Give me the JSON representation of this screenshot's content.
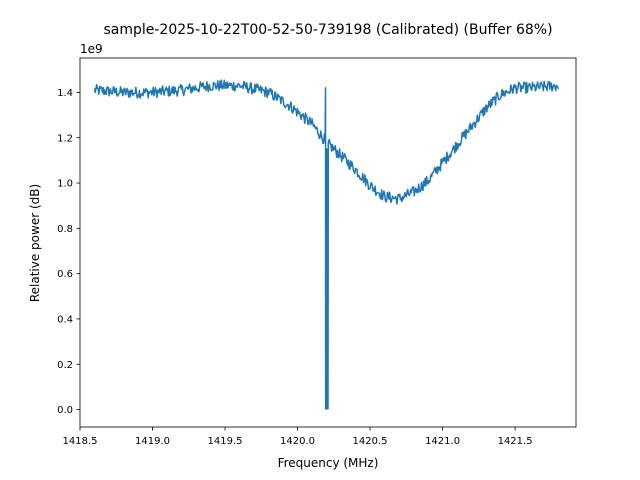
{
  "chart_data": {
    "type": "line",
    "title": "sample-2025-10-22T00-52-50-739198 (Calibrated) (Buffer 68%)",
    "xlabel": "Frequency (MHz)",
    "ylabel": "Relative power (dB)",
    "y_scale_label": "1e9",
    "xlim": [
      1418.5,
      1421.92
    ],
    "ylim": [
      -0.077,
      1.552
    ],
    "x_ticks": [
      1418.5,
      1419.0,
      1419.5,
      1420.0,
      1420.5,
      1421.0,
      1421.5
    ],
    "x_tick_labels": [
      "1418.5",
      "1419.0",
      "1419.5",
      "1420.0",
      "1420.5",
      "1421.0",
      "1421.5"
    ],
    "y_ticks": [
      0.0,
      0.2,
      0.4,
      0.6,
      0.8,
      1.0,
      1.2,
      1.4
    ],
    "y_tick_labels": [
      "0.0",
      "0.2",
      "0.4",
      "0.6",
      "0.8",
      "1.0",
      "1.2",
      "1.4"
    ],
    "grid": false,
    "line_color": "#1f77b4",
    "series": [
      {
        "x_range": [
          1418.6,
          1421.8
        ],
        "baseline_points": [
          [
            1418.6,
            1.41
          ],
          [
            1418.8,
            1.4
          ],
          [
            1419.0,
            1.4
          ],
          [
            1419.2,
            1.41
          ],
          [
            1419.4,
            1.43
          ],
          [
            1419.6,
            1.43
          ],
          [
            1419.8,
            1.4
          ],
          [
            1419.95,
            1.34
          ],
          [
            1420.1,
            1.26
          ],
          [
            1420.2,
            1.18
          ],
          [
            1420.3,
            1.12
          ],
          [
            1420.4,
            1.06
          ],
          [
            1420.5,
            0.99
          ],
          [
            1420.6,
            0.94
          ],
          [
            1420.7,
            0.93
          ],
          [
            1420.8,
            0.96
          ],
          [
            1420.9,
            1.01
          ],
          [
            1421.0,
            1.09
          ],
          [
            1421.1,
            1.17
          ],
          [
            1421.2,
            1.25
          ],
          [
            1421.3,
            1.33
          ],
          [
            1421.4,
            1.39
          ],
          [
            1421.5,
            1.42
          ],
          [
            1421.6,
            1.42
          ],
          [
            1421.8,
            1.43
          ]
        ],
        "noise_amplitude": 0.025,
        "spike": {
          "x_start": 1420.19,
          "x_end": 1420.21,
          "peak": 1.42,
          "min": 0.003
        }
      }
    ]
  }
}
